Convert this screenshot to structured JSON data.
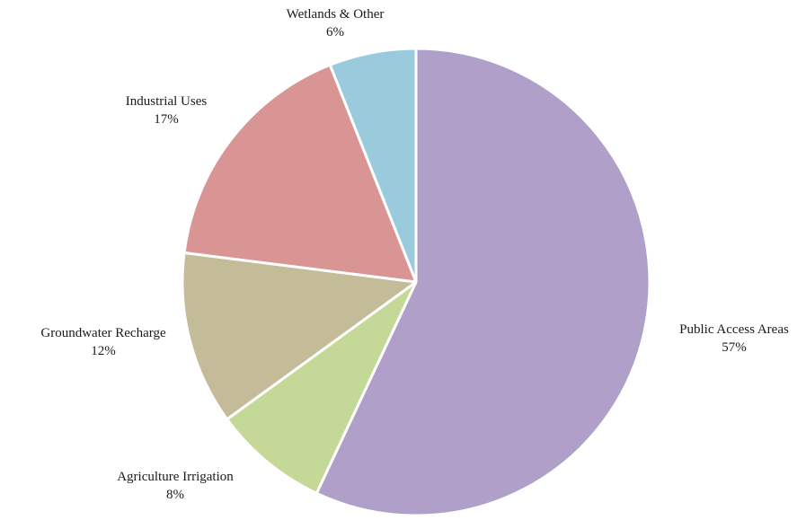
{
  "chart_data": {
    "type": "pie",
    "title": "",
    "start_angle_deg": 0,
    "direction": "clockwise",
    "slices": [
      {
        "name": "Public Access Areas",
        "value": 57,
        "label": "57%",
        "color": "#b09fc8"
      },
      {
        "name": "Agriculture Irrigation",
        "value": 8,
        "label": "8%",
        "color": "#c4d898"
      },
      {
        "name": "Groundwater Recharge",
        "value": 12,
        "label": "12%",
        "color": "#c4bb98"
      },
      {
        "name": "Industrial Uses",
        "value": 17,
        "label": "17%",
        "color": "#d99594"
      },
      {
        "name": "Wetlands & Other",
        "value": 6,
        "label": "6%",
        "color": "#99cbdc"
      }
    ],
    "legend": "none",
    "labels": "outside"
  }
}
